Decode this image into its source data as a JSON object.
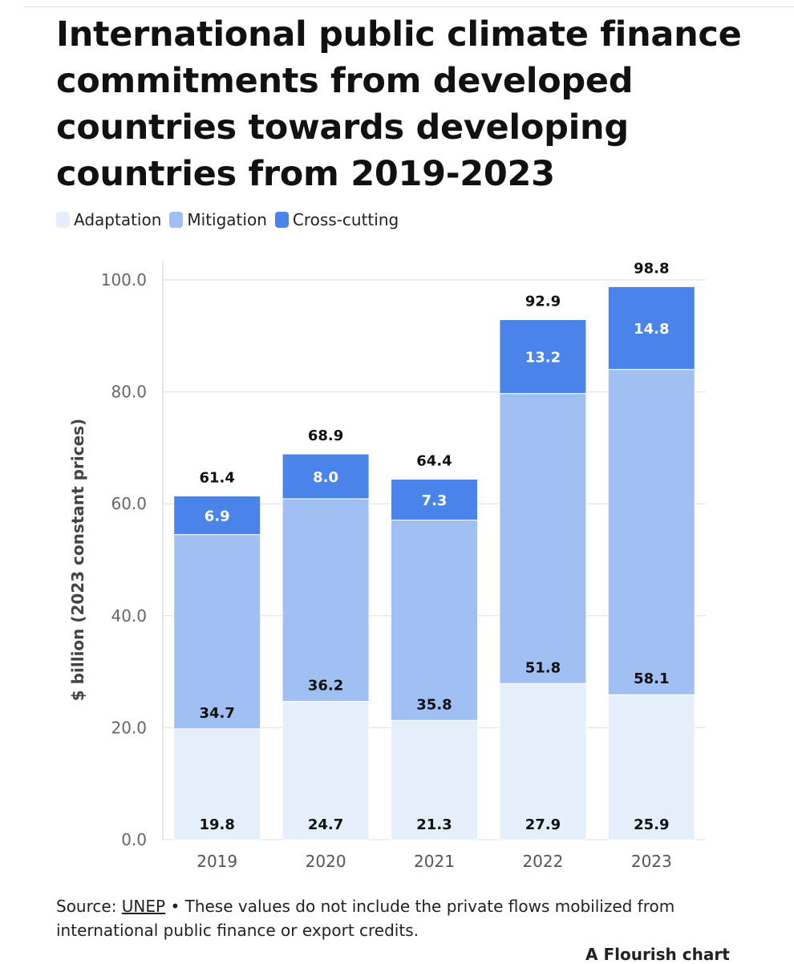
{
  "title": "International public climate finance commitments from developed countries towards developing countries from 2019-2023",
  "footer": {
    "source_label": "Source:",
    "source_link": "UNEP",
    "note": "• These values do not include the private flows mobilized from international public finance or export credits.",
    "credit": "A Flourish chart"
  },
  "chart_data": {
    "type": "bar",
    "stacked": true,
    "categories": [
      "2019",
      "2020",
      "2021",
      "2022",
      "2023"
    ],
    "series": [
      {
        "name": "Adaptation",
        "color": "#e5effb",
        "values": [
          19.8,
          24.7,
          21.3,
          27.9,
          25.9
        ]
      },
      {
        "name": "Mitigation",
        "color": "#a0c0f4",
        "values": [
          34.7,
          36.2,
          35.8,
          51.8,
          58.1
        ]
      },
      {
        "name": "Cross-cutting",
        "color": "#4a84ea",
        "values": [
          6.9,
          8.0,
          7.3,
          13.2,
          14.8
        ]
      }
    ],
    "totals": [
      61.4,
      68.9,
      64.4,
      92.9,
      98.8
    ],
    "ylabel": "$ billion (2023 constant prices)",
    "ylim": [
      0,
      100
    ],
    "yticks": [
      "0.0",
      "20.0",
      "40.0",
      "60.0",
      "80.0",
      "100.0"
    ],
    "grid": true,
    "legend": "top-left"
  }
}
